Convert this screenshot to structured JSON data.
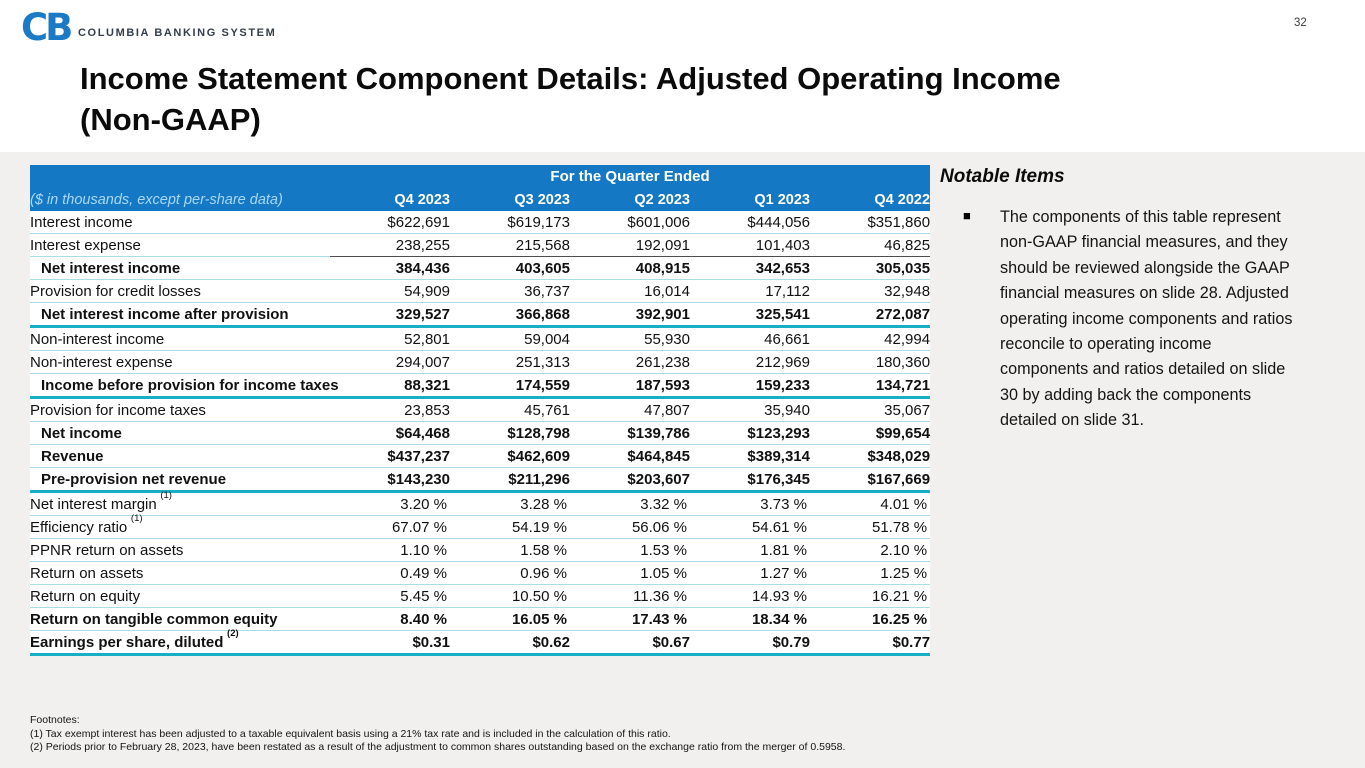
{
  "page": {
    "number": "32"
  },
  "brand": {
    "logo_text": "CB",
    "name": "COLUMBIA BANKING SYSTEM"
  },
  "title": {
    "lines": [
      "Income Statement Component Details: Adjusted Operating Income",
      "(Non-GAAP)"
    ]
  },
  "colors": {
    "header_blue": "#1478c4",
    "accent_teal": "#18aec6",
    "row_separator": "#a9dce7",
    "logo_blue": "#1b7ac5",
    "slide_gray": "#f1f0ef"
  },
  "table": {
    "spanning_header": "For the Quarter Ended",
    "corner_label": "($ in thousands, except per-share data)",
    "columns": [
      "Q4 2023",
      "Q3 2023",
      "Q2 2023",
      "Q1 2023",
      "Q4 2022"
    ],
    "rows": [
      {
        "label": "Interest income",
        "values": [
          "$622,691",
          "$619,173",
          "$601,006",
          "$444,056",
          "$351,860"
        ]
      },
      {
        "label": "Interest expense",
        "darkline": true,
        "values": [
          "238,255",
          "215,568",
          "192,091",
          "101,403",
          "46,825"
        ]
      },
      {
        "label": "Net interest income",
        "bold": true,
        "indent": true,
        "values": [
          "384,436",
          "403,605",
          "408,915",
          "342,653",
          "305,035"
        ]
      },
      {
        "label": "Provision for credit losses",
        "values": [
          "54,909",
          "36,737",
          "16,014",
          "17,112",
          "32,948"
        ]
      },
      {
        "label": "Net interest income after provision",
        "bold": true,
        "indent": true,
        "thick": true,
        "values": [
          "329,527",
          "366,868",
          "392,901",
          "325,541",
          "272,087"
        ]
      },
      {
        "label": "Non-interest income",
        "values": [
          "52,801",
          "59,004",
          "55,930",
          "46,661",
          "42,994"
        ]
      },
      {
        "label": "Non-interest expense",
        "values": [
          "294,007",
          "251,313",
          "261,238",
          "212,969",
          "180,360"
        ]
      },
      {
        "label": "Income before provision for income taxes",
        "bold": true,
        "indent": true,
        "thick": true,
        "values": [
          "88,321",
          "174,559",
          "187,593",
          "159,233",
          "134,721"
        ]
      },
      {
        "label": "Provision for income taxes",
        "values": [
          "23,853",
          "45,761",
          "47,807",
          "35,940",
          "35,067"
        ]
      },
      {
        "label": "Net income",
        "bold": true,
        "indent": true,
        "values": [
          "$64,468",
          "$128,798",
          "$139,786",
          "$123,293",
          "$99,654"
        ]
      },
      {
        "label": "Revenue",
        "bold": true,
        "indent": true,
        "values": [
          "$437,237",
          "$462,609",
          "$464,845",
          "$389,314",
          "$348,029"
        ]
      },
      {
        "label": "Pre-provision net revenue",
        "bold": true,
        "indent": true,
        "thick": true,
        "values": [
          "$143,230",
          "$211,296",
          "$203,607",
          "$176,345",
          "$167,669"
        ]
      },
      {
        "label": "Net interest margin",
        "sup": "(1)",
        "values": [
          "3.20 %",
          "3.28 %",
          "3.32 %",
          "3.73 %",
          "4.01 %"
        ]
      },
      {
        "label": "Efficiency ratio",
        "sup": "(1)",
        "values": [
          "67.07 %",
          "54.19 %",
          "56.06 %",
          "54.61 %",
          "51.78 %"
        ]
      },
      {
        "label": "PPNR return on assets",
        "values": [
          "1.10 %",
          "1.58 %",
          "1.53 %",
          "1.81 %",
          "2.10 %"
        ]
      },
      {
        "label": "Return on assets",
        "values": [
          "0.49 %",
          "0.96 %",
          "1.05 %",
          "1.27 %",
          "1.25 %"
        ]
      },
      {
        "label": "Return on equity",
        "values": [
          "5.45 %",
          "10.50 %",
          "11.36 %",
          "14.93 %",
          "16.21 %"
        ]
      },
      {
        "label": "Return on tangible common equity",
        "bold": true,
        "values": [
          "8.40 %",
          "16.05 %",
          "17.43 %",
          "18.34 %",
          "16.25 %"
        ]
      },
      {
        "label": "Earnings per share, diluted",
        "sup": "(2)",
        "bold": true,
        "thick": true,
        "values": [
          "$0.31",
          "$0.62",
          "$0.67",
          "$0.79",
          "$0.77"
        ]
      }
    ]
  },
  "notable": {
    "heading": "Notable Items",
    "bullet": "■",
    "items": [
      "The components of this table represent non-GAAP financial measures, and they should be reviewed alongside the GAAP financial measures on slide 28. Adjusted operating income components and ratios reconcile to operating income components and ratios detailed on slide 30 by adding back the components detailed on slide 31."
    ]
  },
  "footnotes": {
    "heading": "Footnotes:",
    "lines": [
      "(1) Tax exempt interest has been adjusted to a taxable equivalent basis using a 21% tax rate and is included in the calculation of this ratio.",
      "(2) Periods prior to February 28, 2023, have been restated as a result of the adjustment to common shares outstanding based on the exchange ratio from the merger of 0.5958."
    ]
  }
}
